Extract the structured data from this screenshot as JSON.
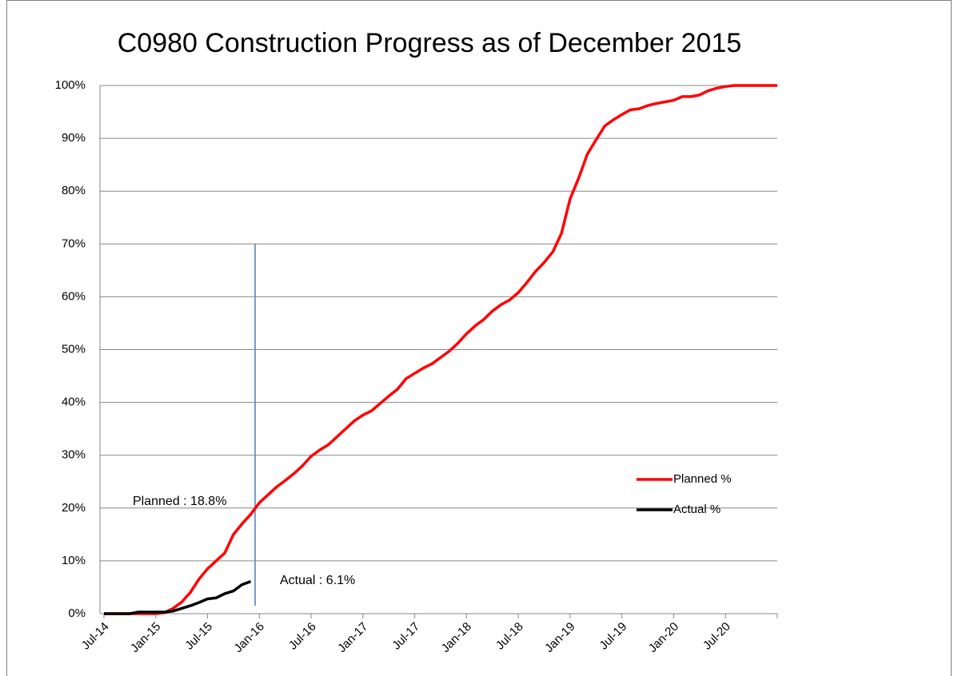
{
  "chart_data": {
    "type": "line",
    "title": "C0980 Construction Progress as of December 2015",
    "categories": [
      "Jul-14",
      null,
      null,
      null,
      null,
      null,
      "Jan-15",
      null,
      null,
      null,
      null,
      null,
      "Jul-15",
      null,
      null,
      null,
      null,
      null,
      "Jan-16",
      null,
      null,
      null,
      null,
      null,
      "Jul-16",
      null,
      null,
      null,
      null,
      null,
      "Jan-17",
      null,
      null,
      null,
      null,
      null,
      "Jul-17",
      null,
      null,
      null,
      null,
      null,
      "Jan-18",
      null,
      null,
      null,
      null,
      null,
      "Jul-18",
      null,
      null,
      null,
      null,
      null,
      "Jan-19",
      null,
      null,
      null,
      null,
      null,
      "Jul-19",
      null,
      null,
      null,
      null,
      null,
      "Jan-20",
      null,
      null,
      null,
      null,
      null,
      "Jul-20",
      null,
      null,
      null,
      null,
      null,
      null
    ],
    "series": [
      {
        "name": "Planned %",
        "color": "#ff0000",
        "values": [
          0,
          0,
          0,
          0,
          0,
          0,
          0,
          0.2,
          1,
          2.2,
          4,
          6.5,
          8.5,
          10,
          11.5,
          15,
          17,
          18.8,
          21,
          22.5,
          24,
          25.2,
          26.5,
          28,
          29.8,
          31,
          32,
          33.5,
          35,
          36.5,
          37.6,
          38.4,
          39.8,
          41.2,
          42.5,
          44.5,
          45.5,
          46.5,
          47.3,
          48.5,
          49.7,
          51.2,
          53,
          54.5,
          55.7,
          57.3,
          58.5,
          59.4,
          60.8,
          62.7,
          64.8,
          66.5,
          68.5,
          72,
          78.5,
          82.5,
          87,
          89.7,
          92.3,
          93.5,
          94.5,
          95.4,
          95.6,
          96.2,
          96.6,
          96.9,
          97.2,
          97.9,
          97.9,
          98.2,
          99,
          99.5,
          99.8,
          100,
          100,
          100,
          100,
          100,
          100
        ]
      },
      {
        "name": "Actual %",
        "color": "#000000",
        "values": [
          0,
          0,
          0,
          0,
          0.3,
          0.3,
          0.3,
          0.3,
          0.5,
          1,
          1.5,
          2.1,
          2.8,
          3,
          3.8,
          4.3,
          5.5,
          6.1,
          null,
          null,
          null,
          null,
          null,
          null,
          null,
          null,
          null,
          null,
          null,
          null,
          null,
          null,
          null,
          null,
          null,
          null,
          null,
          null,
          null,
          null,
          null,
          null,
          null,
          null,
          null,
          null,
          null,
          null,
          null,
          null,
          null,
          null,
          null,
          null,
          null,
          null,
          null,
          null,
          null,
          null,
          null,
          null,
          null,
          null,
          null,
          null,
          null,
          null,
          null,
          null,
          null,
          null,
          null,
          null,
          null,
          null,
          null,
          null,
          null
        ]
      }
    ],
    "ylim": [
      0,
      100
    ],
    "yticks": [
      {
        "value": 0,
        "label": "0%"
      },
      {
        "value": 10,
        "label": "10%"
      },
      {
        "value": 20,
        "label": "20%"
      },
      {
        "value": 30,
        "label": "30%"
      },
      {
        "value": 40,
        "label": "40%"
      },
      {
        "value": 50,
        "label": "50%"
      },
      {
        "value": 60,
        "label": "60%"
      },
      {
        "value": 70,
        "label": "70%"
      },
      {
        "value": 80,
        "label": "80%"
      },
      {
        "value": 90,
        "label": "90%"
      },
      {
        "value": 100,
        "label": "100%"
      }
    ],
    "grid": true,
    "legend": "right",
    "annotations": [
      "Planned : 18.8%",
      "Actual : 6.1%"
    ]
  }
}
